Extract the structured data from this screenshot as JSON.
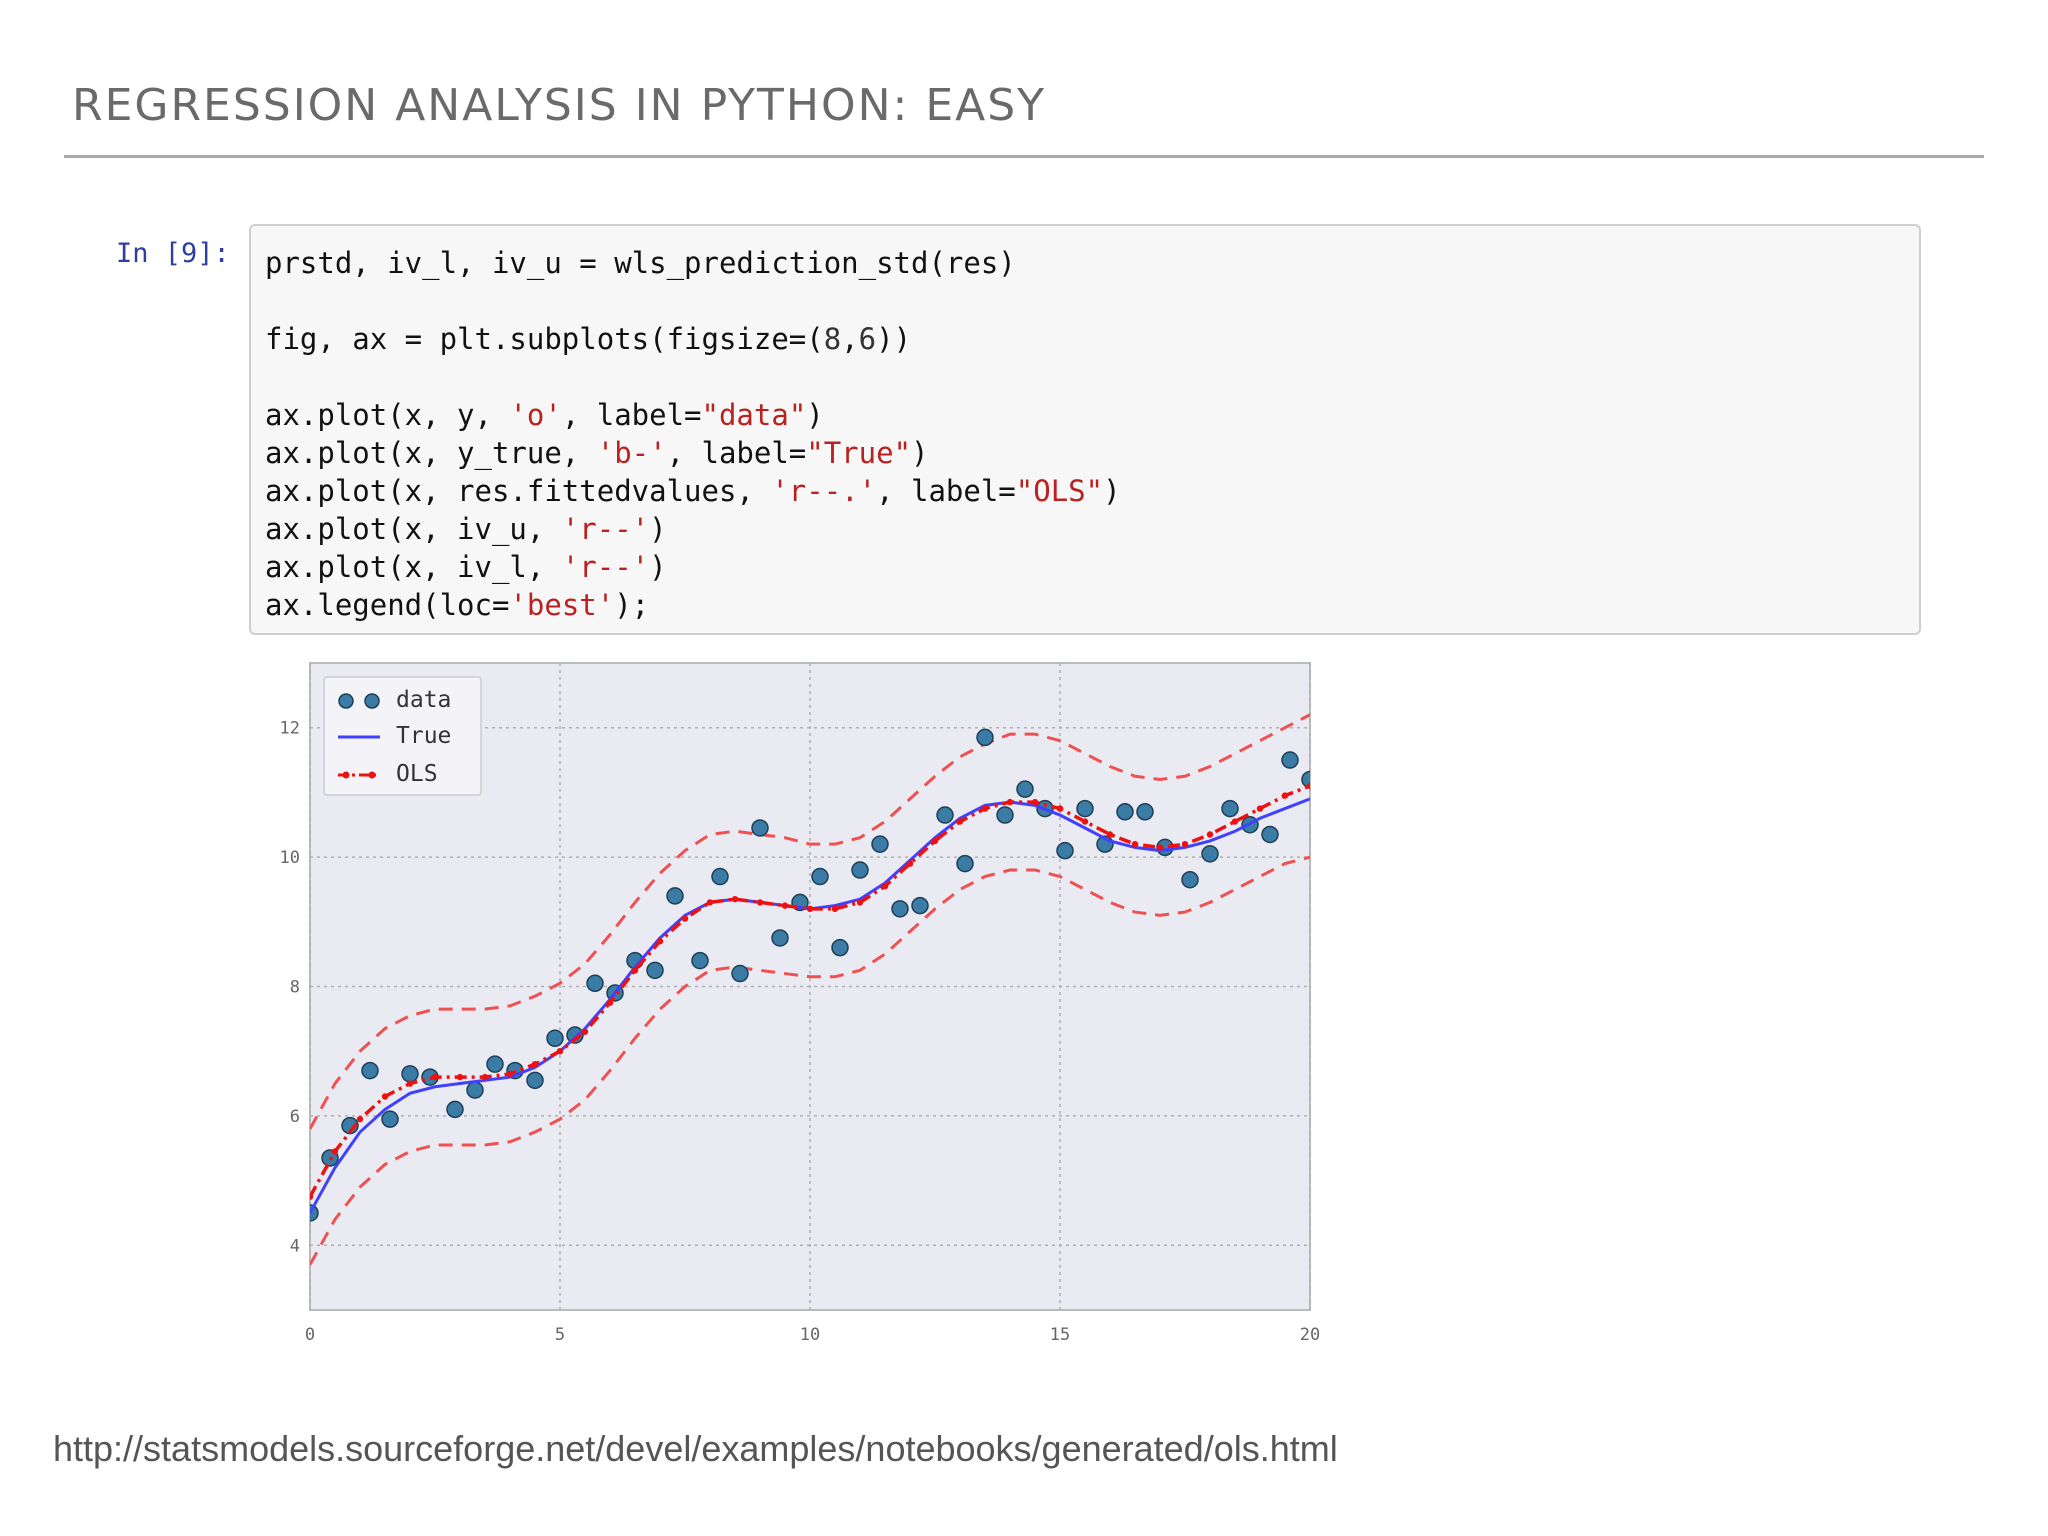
{
  "slide": {
    "title": "REGRESSION ANALYSIS IN PYTHON: EASY",
    "source_url": "http://statsmodels.sourceforge.net/devel/examples/notebooks/generated/ols.html"
  },
  "cell": {
    "prompt": "In [9]:",
    "lines": [
      [
        {
          "t": "prstd, iv_l, iv_u = wls_prediction_std(res)",
          "c": ""
        }
      ],
      [],
      [
        {
          "t": "fig, ax = plt.subplots(figsize=(",
          "c": ""
        },
        {
          "t": "8",
          "c": "num"
        },
        {
          "t": ",",
          "c": ""
        },
        {
          "t": "6",
          "c": "num"
        },
        {
          "t": "))",
          "c": ""
        }
      ],
      [],
      [
        {
          "t": "ax.plot(x, y, ",
          "c": ""
        },
        {
          "t": "'o'",
          "c": "str"
        },
        {
          "t": ", label=",
          "c": ""
        },
        {
          "t": "\"data\"",
          "c": "str"
        },
        {
          "t": ")",
          "c": ""
        }
      ],
      [
        {
          "t": "ax.plot(x, y_true, ",
          "c": ""
        },
        {
          "t": "'b-'",
          "c": "str"
        },
        {
          "t": ", label=",
          "c": ""
        },
        {
          "t": "\"True\"",
          "c": "str"
        },
        {
          "t": ")",
          "c": ""
        }
      ],
      [
        {
          "t": "ax.plot(x, res.fittedvalues, ",
          "c": ""
        },
        {
          "t": "'r--.'",
          "c": "str"
        },
        {
          "t": ", label=",
          "c": ""
        },
        {
          "t": "\"OLS\"",
          "c": "str"
        },
        {
          "t": ")",
          "c": ""
        }
      ],
      [
        {
          "t": "ax.plot(x, iv_u, ",
          "c": ""
        },
        {
          "t": "'r--'",
          "c": "str"
        },
        {
          "t": ")",
          "c": ""
        }
      ],
      [
        {
          "t": "ax.plot(x, iv_l, ",
          "c": ""
        },
        {
          "t": "'r--'",
          "c": "str"
        },
        {
          "t": ")",
          "c": ""
        }
      ],
      [
        {
          "t": "ax.legend(loc=",
          "c": ""
        },
        {
          "t": "'best'",
          "c": "str"
        },
        {
          "t": ");",
          "c": ""
        }
      ]
    ]
  },
  "chart_data": {
    "type": "line",
    "xlim": [
      0,
      20
    ],
    "ylim": [
      3,
      13
    ],
    "xticks": [
      0,
      5,
      10,
      15,
      20
    ],
    "xtick_labels": [
      "0",
      "5",
      "10",
      "15",
      "20"
    ],
    "yticks": [
      4,
      6,
      8,
      10,
      12
    ],
    "ytick_labels": [
      "4",
      "6",
      "8",
      "10",
      "12"
    ],
    "grid": true,
    "legend": {
      "location": "top-left",
      "entries": [
        "data",
        "True",
        "OLS"
      ]
    },
    "colors": {
      "data": "#3a7ca5",
      "true": "#4040ff",
      "ols": "#ee1111",
      "band": "#f05050",
      "axes_bg": "#eaeaf2"
    },
    "series": [
      {
        "name": "data",
        "style": "markers",
        "x": [
          0,
          0.4,
          0.8,
          1.2,
          1.6,
          2.0,
          2.4,
          2.9,
          3.3,
          3.7,
          4.1,
          4.5,
          4.9,
          5.3,
          5.7,
          6.1,
          6.5,
          6.9,
          7.3,
          7.8,
          8.2,
          8.6,
          9.0,
          9.4,
          9.8,
          10.2,
          10.6,
          11.0,
          11.4,
          11.8,
          12.2,
          12.7,
          13.1,
          13.5,
          13.9,
          14.3,
          14.7,
          15.1,
          15.5,
          15.9,
          16.3,
          16.7,
          17.1,
          17.6,
          18.0,
          18.4,
          18.8,
          19.2,
          19.6,
          20.0
        ],
        "y": [
          4.5,
          5.35,
          5.85,
          6.7,
          5.95,
          6.65,
          6.6,
          6.1,
          6.4,
          6.8,
          6.7,
          6.55,
          7.2,
          7.25,
          8.05,
          7.9,
          8.4,
          8.25,
          9.4,
          8.4,
          9.7,
          8.2,
          10.45,
          8.75,
          9.3,
          9.7,
          8.6,
          9.8,
          10.2,
          9.2,
          9.25,
          10.65,
          9.9,
          11.85,
          10.65,
          11.05,
          10.75,
          10.1,
          10.75,
          10.2,
          10.7,
          10.7,
          10.15,
          9.65,
          10.05,
          10.75,
          10.5,
          10.35,
          11.5,
          11.2
        ]
      },
      {
        "name": "True",
        "style": "solid",
        "x": [
          0,
          0.5,
          1,
          1.5,
          2,
          2.5,
          3,
          3.5,
          4,
          4.5,
          5,
          5.5,
          6,
          6.5,
          7,
          7.5,
          8,
          8.5,
          9,
          9.5,
          10,
          10.5,
          11,
          11.5,
          12,
          12.5,
          13,
          13.5,
          14,
          14.5,
          15,
          15.5,
          16,
          16.5,
          17,
          17.5,
          18,
          18.5,
          19,
          19.5,
          20
        ],
        "y": [
          4.5,
          5.2,
          5.75,
          6.1,
          6.35,
          6.45,
          6.5,
          6.55,
          6.6,
          6.75,
          7.0,
          7.35,
          7.8,
          8.3,
          8.75,
          9.1,
          9.3,
          9.35,
          9.3,
          9.25,
          9.2,
          9.25,
          9.35,
          9.6,
          9.95,
          10.3,
          10.6,
          10.8,
          10.85,
          10.8,
          10.65,
          10.45,
          10.25,
          10.15,
          10.1,
          10.15,
          10.25,
          10.4,
          10.6,
          10.75,
          10.9
        ]
      },
      {
        "name": "OLS",
        "style": "dash-dot-markers",
        "x": [
          0,
          0.5,
          1,
          1.5,
          2,
          2.5,
          3,
          3.5,
          4,
          4.5,
          5,
          5.5,
          6,
          6.5,
          7,
          7.5,
          8,
          8.5,
          9,
          9.5,
          10,
          10.5,
          11,
          11.5,
          12,
          12.5,
          13,
          13.5,
          14,
          14.5,
          15,
          15.5,
          16,
          16.5,
          17,
          17.5,
          18,
          18.5,
          19,
          19.5,
          20
        ],
        "y": [
          4.75,
          5.45,
          5.95,
          6.3,
          6.5,
          6.6,
          6.6,
          6.6,
          6.65,
          6.8,
          7.0,
          7.3,
          7.75,
          8.25,
          8.7,
          9.05,
          9.3,
          9.35,
          9.3,
          9.25,
          9.2,
          9.2,
          9.3,
          9.55,
          9.9,
          10.25,
          10.55,
          10.75,
          10.85,
          10.85,
          10.75,
          10.55,
          10.35,
          10.2,
          10.15,
          10.2,
          10.35,
          10.55,
          10.75,
          10.95,
          11.1
        ]
      },
      {
        "name": "",
        "role": "upper-band",
        "style": "dashed",
        "x": [
          0,
          0.5,
          1,
          1.5,
          2,
          2.5,
          3,
          3.5,
          4,
          4.5,
          5,
          5.5,
          6,
          6.5,
          7,
          7.5,
          8,
          8.5,
          9,
          9.5,
          10,
          10.5,
          11,
          11.5,
          12,
          12.5,
          13,
          13.5,
          14,
          14.5,
          15,
          15.5,
          16,
          16.5,
          17,
          17.5,
          18,
          18.5,
          19,
          19.5,
          20
        ],
        "y": [
          5.8,
          6.5,
          7.0,
          7.35,
          7.55,
          7.65,
          7.65,
          7.65,
          7.7,
          7.85,
          8.05,
          8.35,
          8.8,
          9.3,
          9.75,
          10.1,
          10.35,
          10.4,
          10.35,
          10.3,
          10.2,
          10.2,
          10.3,
          10.55,
          10.9,
          11.25,
          11.55,
          11.75,
          11.9,
          11.9,
          11.8,
          11.6,
          11.4,
          11.25,
          11.2,
          11.25,
          11.4,
          11.6,
          11.8,
          12.0,
          12.2
        ]
      },
      {
        "name": "",
        "role": "lower-band",
        "style": "dashed",
        "x": [
          0,
          0.5,
          1,
          1.5,
          2,
          2.5,
          3,
          3.5,
          4,
          4.5,
          5,
          5.5,
          6,
          6.5,
          7,
          7.5,
          8,
          8.5,
          9,
          9.5,
          10,
          10.5,
          11,
          11.5,
          12,
          12.5,
          13,
          13.5,
          14,
          14.5,
          15,
          15.5,
          16,
          16.5,
          17,
          17.5,
          18,
          18.5,
          19,
          19.5,
          20
        ],
        "y": [
          3.7,
          4.4,
          4.9,
          5.25,
          5.45,
          5.55,
          5.55,
          5.55,
          5.6,
          5.75,
          5.95,
          6.25,
          6.7,
          7.2,
          7.65,
          8.0,
          8.25,
          8.3,
          8.25,
          8.2,
          8.15,
          8.15,
          8.25,
          8.5,
          8.85,
          9.2,
          9.5,
          9.7,
          9.8,
          9.8,
          9.7,
          9.5,
          9.3,
          9.15,
          9.1,
          9.15,
          9.3,
          9.5,
          9.7,
          9.9,
          10.0
        ]
      }
    ]
  }
}
